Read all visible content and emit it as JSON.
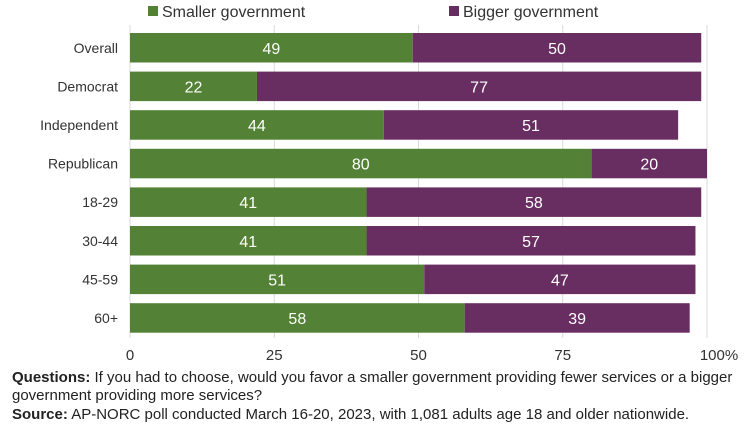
{
  "chart_data": {
    "type": "bar",
    "orientation": "horizontal",
    "stacked": true,
    "categories": [
      "Overall",
      "Democrat",
      "Independent",
      "Republican",
      "18-29",
      "30-44",
      "45-59",
      "60+"
    ],
    "series": [
      {
        "name": "Smaller government",
        "values": [
          49,
          22,
          44,
          80,
          41,
          41,
          51,
          58
        ],
        "color": "#538135"
      },
      {
        "name": "Bigger government",
        "values": [
          50,
          77,
          51,
          20,
          58,
          57,
          47,
          39
        ],
        "color": "#692e61"
      }
    ],
    "xlim": [
      0,
      100
    ],
    "xticks": [
      0,
      25,
      50,
      75,
      100
    ],
    "xtick_labels": [
      "0",
      "25",
      "50",
      "75",
      "100%"
    ],
    "grid": "vertical",
    "legend_position": "top"
  },
  "notes": {
    "questions_label": "Questions:",
    "questions_text": " If you had to choose, would you favor a smaller government providing fewer services or a bigger government providing more services?",
    "source_label": "Source:",
    "source_text": " AP-NORC poll conducted March 16-20, 2023, with 1,081 adults age 18 and older nationwide."
  }
}
